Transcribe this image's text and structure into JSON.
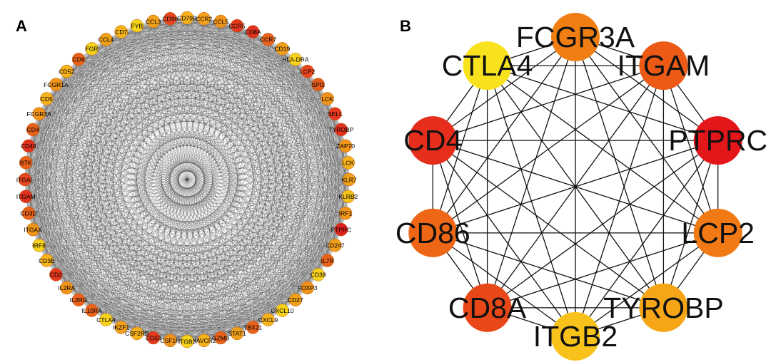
{
  "panel_a": {
    "label": "A",
    "nodes": [
      {
        "name": "CD79B",
        "color": "#f6b21a"
      },
      {
        "name": "CCR2",
        "color": "#f6a01a"
      },
      {
        "name": "CCL5",
        "color": "#f0951a"
      },
      {
        "name": "CCR5",
        "color": "#e5391f"
      },
      {
        "name": "CD8A",
        "color": "#e0321f"
      },
      {
        "name": "CCR7",
        "color": "#e8621c"
      },
      {
        "name": "CD19",
        "color": "#f0a01a"
      },
      {
        "name": "HLA-DRA",
        "color": "#f7d21a"
      },
      {
        "name": "LCP2",
        "color": "#e8461f"
      },
      {
        "name": "SPI1",
        "color": "#e05a1c"
      },
      {
        "name": "LCK",
        "color": "#f0951a"
      },
      {
        "name": "SELL",
        "color": "#e5391f"
      },
      {
        "name": "TYROBP",
        "color": "#e0321f"
      },
      {
        "name": "ZAP70",
        "color": "#f0951a"
      },
      {
        "name": "LCK",
        "color": "#f6b21a"
      },
      {
        "name": "KLR7",
        "color": "#f0a01a"
      },
      {
        "name": "KLRB2",
        "color": "#f6c21a"
      },
      {
        "name": "IRF1",
        "color": "#f0951a"
      },
      {
        "name": "PTPRC",
        "color": "#e0221f"
      },
      {
        "name": "CD247",
        "color": "#f0a01a"
      },
      {
        "name": "IL7R",
        "color": "#e8621c"
      },
      {
        "name": "CD38",
        "color": "#f7d21a"
      },
      {
        "name": "FOXP3",
        "color": "#f0951a"
      },
      {
        "name": "CD27",
        "color": "#f0a01a"
      },
      {
        "name": "CXCL10",
        "color": "#f7d21a"
      },
      {
        "name": "CXCL9",
        "color": "#f6b21a"
      },
      {
        "name": "TBX21",
        "color": "#e8621c"
      },
      {
        "name": "STAT1",
        "color": "#f0a01a"
      },
      {
        "name": "GZMB",
        "color": "#e8621c"
      },
      {
        "name": "HAVCR2",
        "color": "#f6b21a"
      },
      {
        "name": "ITGB2",
        "color": "#f7d21a"
      },
      {
        "name": "CSF1R",
        "color": "#f0951a"
      },
      {
        "name": "CD53",
        "color": "#e5391f"
      },
      {
        "name": "CSF2RB",
        "color": "#f6b21a"
      },
      {
        "name": "IKZF1",
        "color": "#f0a01a"
      },
      {
        "name": "CTLA4",
        "color": "#f7d21a"
      },
      {
        "name": "IL10RA",
        "color": "#e8621c"
      },
      {
        "name": "IL2RG",
        "color": "#e8621c"
      },
      {
        "name": "IL2RA",
        "color": "#f0951a"
      },
      {
        "name": "CD2",
        "color": "#e5391f"
      },
      {
        "name": "CD3E",
        "color": "#f6b21a"
      },
      {
        "name": "IRF8",
        "color": "#f7d21a"
      },
      {
        "name": "ITGAX",
        "color": "#f0951a"
      },
      {
        "name": "CD3D",
        "color": "#e8621c"
      },
      {
        "name": "ITGAM",
        "color": "#e0321f"
      },
      {
        "name": "ITGAL",
        "color": "#e8461f"
      },
      {
        "name": "BTK",
        "color": "#e8621c"
      },
      {
        "name": "CD48",
        "color": "#e0321f"
      },
      {
        "name": "CD4",
        "color": "#e8621c"
      },
      {
        "name": "FCGR3A",
        "color": "#f0951a"
      },
      {
        "name": "CD5",
        "color": "#f6b21a"
      },
      {
        "name": "FCGR1A",
        "color": "#f0951a"
      },
      {
        "name": "CD52",
        "color": "#f6b21a"
      },
      {
        "name": "CD6",
        "color": "#e8621c"
      },
      {
        "name": "FGR",
        "color": "#f7d21a"
      },
      {
        "name": "CCL4",
        "color": "#f0a01a"
      },
      {
        "name": "CD7",
        "color": "#f6b21a"
      },
      {
        "name": "FYB",
        "color": "#f7d21a"
      },
      {
        "name": "CCL3",
        "color": "#f0a01a"
      },
      {
        "name": "CD96",
        "color": "#e8461f"
      }
    ]
  },
  "panel_b": {
    "label": "B",
    "nodes": [
      {
        "name": "FCGR3A",
        "color": "#f07e12"
      },
      {
        "name": "ITGAM",
        "color": "#ec5a16"
      },
      {
        "name": "PTPRC",
        "color": "#e3161a"
      },
      {
        "name": "LCP2",
        "color": "#f27a14"
      },
      {
        "name": "TYROBP",
        "color": "#f5a515"
      },
      {
        "name": "ITGB2",
        "color": "#f8c21a"
      },
      {
        "name": "CD8A",
        "color": "#e84818"
      },
      {
        "name": "CD86",
        "color": "#ee6616"
      },
      {
        "name": "CD4",
        "color": "#e52e1c"
      },
      {
        "name": "CTLA4",
        "color": "#f8e21d"
      }
    ]
  }
}
